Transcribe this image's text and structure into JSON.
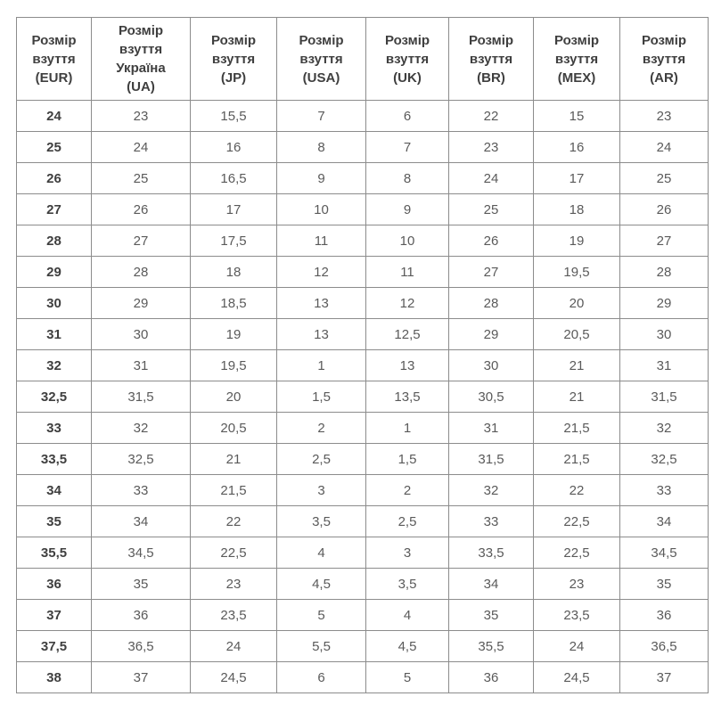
{
  "page": {
    "background_color": "#ffffff"
  },
  "table": {
    "border_color": "#8c8c8c",
    "header_text_color": "#3f3f3f",
    "cell_text_color": "#5a5a5a",
    "eur_column_text_color": "#3f3f3f",
    "headers": [
      "Розмір\nвзуття\n(EUR)",
      "Розмір\nвзуття\nУкраїна\n(UA)",
      "Розмір\nвзуття\n(JP)",
      "Розмір\nвзуття\n(USA)",
      "Розмір\nвзуття\n(UK)",
      "Розмір\nвзуття\n(BR)",
      "Розмір\nвзуття\n(MEX)",
      "Розмір\nвзуття\n(AR)"
    ],
    "rows": [
      {
        "cells": [
          "24",
          "23",
          "15,5",
          "7",
          "6",
          "22",
          "15",
          "23"
        ]
      },
      {
        "cells": [
          "25",
          "24",
          "16",
          "8",
          "7",
          "23",
          "16",
          "24"
        ]
      },
      {
        "cells": [
          "26",
          "25",
          "16,5",
          "9",
          "8",
          "24",
          "17",
          "25"
        ]
      },
      {
        "cells": [
          "27",
          "26",
          "17",
          "10",
          "9",
          "25",
          "18",
          "26"
        ]
      },
      {
        "cells": [
          "28",
          "27",
          "17,5",
          "11",
          "10",
          "26",
          "19",
          "27"
        ]
      },
      {
        "cells": [
          "29",
          "28",
          "18",
          "12",
          "11",
          "27",
          "19,5",
          "28"
        ]
      },
      {
        "cells": [
          "30",
          "29",
          "18,5",
          "13",
          "12",
          "28",
          "20",
          "29"
        ]
      },
      {
        "cells": [
          "31",
          "30",
          "19",
          "13",
          "12,5",
          "29",
          "20,5",
          "30"
        ]
      },
      {
        "cells": [
          "32",
          "31",
          "19,5",
          "1",
          "13",
          "30",
          "21",
          "31"
        ]
      },
      {
        "cells": [
          "32,5",
          "31,5",
          "20",
          "1,5",
          "13,5",
          "30,5",
          "21",
          "31,5"
        ]
      },
      {
        "cells": [
          "33",
          "32",
          "20,5",
          "2",
          "1",
          "31",
          "21,5",
          "32"
        ]
      },
      {
        "cells": [
          "33,5",
          "32,5",
          "21",
          "2,5",
          "1,5",
          "31,5",
          "21,5",
          "32,5"
        ]
      },
      {
        "cells": [
          "34",
          "33",
          "21,5",
          "3",
          "2",
          "32",
          "22",
          "33"
        ]
      },
      {
        "cells": [
          "35",
          "34",
          "22",
          "3,5",
          "2,5",
          "33",
          "22,5",
          "34"
        ]
      },
      {
        "cells": [
          "35,5",
          "34,5",
          "22,5",
          "4",
          "3",
          "33,5",
          "22,5",
          "34,5"
        ]
      },
      {
        "cells": [
          "36",
          "35",
          "23",
          "4,5",
          "3,5",
          "34",
          "23",
          "35"
        ]
      },
      {
        "cells": [
          "37",
          "36",
          "23,5",
          "5",
          "4",
          "35",
          "23,5",
          "36"
        ]
      },
      {
        "cells": [
          "37,5",
          "36,5",
          "24",
          "5,5",
          "4,5",
          "35,5",
          "24",
          "36,5"
        ]
      },
      {
        "cells": [
          "38",
          "37",
          "24,5",
          "6",
          "5",
          "36",
          "24,5",
          "37"
        ]
      }
    ]
  }
}
